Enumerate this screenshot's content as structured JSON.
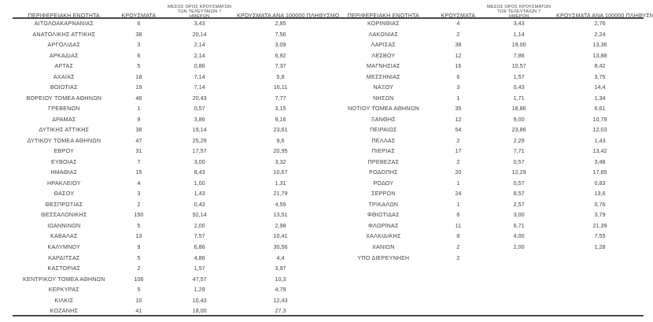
{
  "header": {
    "col_region": "ΠΕΡΙΦΕΡΕΙΑΚΗ ΕΝΟΤΗΤΑ",
    "col_cases": "ΚΡΟΥΣΜΑΤΑ",
    "col_avg7": "ΜΕΣΟΣ ΟΡΟΣ ΚΡΟΥΣΜΑΤΩΝ ΤΩΝ ΤΕΛΕΥΤΑΙΩΝ 7 ΗΜΕΡΩΝ",
    "col_per100k": "ΚΡΟΥΣΜΑΤΑ ΑΝΑ 100000 ΠΛΗΘΥΣΜΟ"
  },
  "colors": {
    "text": "#3f3f3f",
    "rule": "#4a4a4a",
    "background": "#ffffff"
  },
  "tables": [
    {
      "rows": [
        {
          "region": "ΑΙΤΩΛΟΑΚΑΡΝΑΝΙΑΣ",
          "cases": "6",
          "avg7": "3,43",
          "per100k": "2,85"
        },
        {
          "region": "ΑΝΑΤΟΛΙΚΗΣ ΑΤΤΙΚΗΣ",
          "cases": "38",
          "avg7": "20,14",
          "per100k": "7,56"
        },
        {
          "region": "ΑΡΓΟΛΙΔΑΣ",
          "cases": "3",
          "avg7": "2,14",
          "per100k": "3,09"
        },
        {
          "region": "ΑΡΚΑΔΙΑΣ",
          "cases": "6",
          "avg7": "2,14",
          "per100k": "6,92"
        },
        {
          "region": "ΑΡΤΑΣ",
          "cases": "5",
          "avg7": "0,86",
          "per100k": "7,37"
        },
        {
          "region": "ΑΧΑΪΑΣ",
          "cases": "18",
          "avg7": "7,14",
          "per100k": "5,8"
        },
        {
          "region": "ΒΟΙΩΤΙΑΣ",
          "cases": "19",
          "avg7": "7,14",
          "per100k": "16,11"
        },
        {
          "region": "ΒΟΡΕΙΟΥ ΤΟΜΕΑ ΑΘΗΝΩΝ",
          "cases": "46",
          "avg7": "20,43",
          "per100k": "7,77"
        },
        {
          "region": "ΓΡΕΒΕΝΩΝ",
          "cases": "1",
          "avg7": "0,57",
          "per100k": "3,15"
        },
        {
          "region": "ΔΡΑΜΑΣ",
          "cases": "9",
          "avg7": "3,86",
          "per100k": "9,16"
        },
        {
          "region": "ΔΥΤΙΚΗΣ ΑΤΤΙΚΗΣ",
          "cases": "38",
          "avg7": "19,14",
          "per100k": "23,61"
        },
        {
          "region": "ΔΥΤΙΚΟΥ ΤΟΜΕΑ ΑΘΗΝΩΝ",
          "cases": "47",
          "avg7": "25,29",
          "per100k": "9,6"
        },
        {
          "region": "ΕΒΡΟΥ",
          "cases": "31",
          "avg7": "17,57",
          "per100k": "20,95"
        },
        {
          "region": "ΕΥΒΟΙΑΣ",
          "cases": "7",
          "avg7": "3,00",
          "per100k": "3,32"
        },
        {
          "region": "ΗΜΑΘΙΑΣ",
          "cases": "15",
          "avg7": "8,43",
          "per100k": "10,67"
        },
        {
          "region": "ΗΡΑΚΛΕΙΟΥ",
          "cases": "4",
          "avg7": "1,00",
          "per100k": "1,31"
        },
        {
          "region": "ΘΑΣΟΥ",
          "cases": "3",
          "avg7": "1,43",
          "per100k": "21,79"
        },
        {
          "region": "ΘΕΣΠΡΩΤΙΑΣ",
          "cases": "2",
          "avg7": "0,43",
          "per100k": "4,59"
        },
        {
          "region": "ΘΕΣΣΑΛΟΝΙΚΗΣ",
          "cases": "150",
          "avg7": "92,14",
          "per100k": "13,51"
        },
        {
          "region": "ΙΩΑΝΝΙΝΩΝ",
          "cases": "5",
          "avg7": "2,00",
          "per100k": "2,98"
        },
        {
          "region": "ΚΑΒΑΛΑΣ",
          "cases": "13",
          "avg7": "7,57",
          "per100k": "10,41"
        },
        {
          "region": "ΚΑΛΥΜΝΟΥ",
          "cases": "9",
          "avg7": "6,86",
          "per100k": "30,56"
        },
        {
          "region": "ΚΑΡΔΙΤΣΑΣ",
          "cases": "5",
          "avg7": "4,86",
          "per100k": "4,4"
        },
        {
          "region": "ΚΑΣΤΟΡΙΑΣ",
          "cases": "2",
          "avg7": "1,57",
          "per100k": "3,97"
        },
        {
          "region": "ΚΕΝΤΡΙΚΟΥ ΤΟΜΕΑ ΑΘΗΝΩΝ",
          "cases": "106",
          "avg7": "47,57",
          "per100k": "10,3"
        },
        {
          "region": "ΚΕΡΚΥΡΑΣ",
          "cases": "5",
          "avg7": "1,29",
          "per100k": "4,79"
        },
        {
          "region": "ΚΙΛΚΙΣ",
          "cases": "10",
          "avg7": "10,43",
          "per100k": "12,43"
        },
        {
          "region": "ΚΟΖΑΝΗΣ",
          "cases": "41",
          "avg7": "18,00",
          "per100k": "27,3"
        }
      ]
    },
    {
      "rows": [
        {
          "region": "ΚΟΡΙΝΘΙΑΣ",
          "cases": "4",
          "avg7": "3,43",
          "per100k": "2,76"
        },
        {
          "region": "ΛΑΚΩΝΙΑΣ",
          "cases": "2",
          "avg7": "1,14",
          "per100k": "2,24"
        },
        {
          "region": "ΛΑΡΙΣΑΣ",
          "cases": "38",
          "avg7": "19,00",
          "per100k": "13,36"
        },
        {
          "region": "ΛΕΣΒΟΥ",
          "cases": "12",
          "avg7": "7,86",
          "per100k": "13,88"
        },
        {
          "region": "ΜΑΓΝΗΣΙΑΣ",
          "cases": "16",
          "avg7": "10,57",
          "per100k": "8,42"
        },
        {
          "region": "ΜΕΣΣΗΝΙΑΣ",
          "cases": "6",
          "avg7": "1,57",
          "per100k": "3,75"
        },
        {
          "region": "ΝΑΞΟΥ",
          "cases": "3",
          "avg7": "0,43",
          "per100k": "14,4"
        },
        {
          "region": "ΝΗΣΩΝ",
          "cases": "1",
          "avg7": "1,71",
          "per100k": "1,34"
        },
        {
          "region": "ΝΟΤΙΟΥ ΤΟΜΕΑ ΑΘΗΝΩΝ",
          "cases": "35",
          "avg7": "18,86",
          "per100k": "6,61"
        },
        {
          "region": "ΞΑΝΘΗΣ",
          "cases": "12",
          "avg7": "9,00",
          "per100k": "10,79"
        },
        {
          "region": "ΠΕΙΡΑΙΩΣ",
          "cases": "54",
          "avg7": "23,86",
          "per100k": "12,03"
        },
        {
          "region": "ΠΕΛΛΑΣ",
          "cases": "2",
          "avg7": "2,29",
          "per100k": "1,43"
        },
        {
          "region": "ΠΙΕΡΙΑΣ",
          "cases": "17",
          "avg7": "7,71",
          "per100k": "13,42"
        },
        {
          "region": "ΠΡΕΒΕΖΑΣ",
          "cases": "2",
          "avg7": "0,57",
          "per100k": "3,48"
        },
        {
          "region": "ΡΟΔΟΠΗΣ",
          "cases": "20",
          "avg7": "12,29",
          "per100k": "17,85"
        },
        {
          "region": "ΡΟΔΟΥ",
          "cases": "1",
          "avg7": "0,57",
          "per100k": "0,83"
        },
        {
          "region": "ΣΕΡΡΩΝ",
          "cases": "24",
          "avg7": "8,57",
          "per100k": "13,6"
        },
        {
          "region": "ΤΡΙΚΑΛΩΝ",
          "cases": "1",
          "avg7": "2,57",
          "per100k": "0,76"
        },
        {
          "region": "ΦΘΙΩΤΙΔΑΣ",
          "cases": "6",
          "avg7": "3,00",
          "per100k": "3,79"
        },
        {
          "region": "ΦΛΩΡΙΝΑΣ",
          "cases": "11",
          "avg7": "6,71",
          "per100k": "21,39"
        },
        {
          "region": "ΧΑΛΚΙΔΙΚΗΣ",
          "cases": "8",
          "avg7": "4,00",
          "per100k": "7,55"
        },
        {
          "region": "ΧΑΝΙΩΝ",
          "cases": "2",
          "avg7": "2,00",
          "per100k": "1,28"
        },
        {
          "region": "ΥΠΟ ΔΙΕΡΕΥΝΗΣΗ",
          "cases": "2",
          "avg7": "",
          "per100k": ""
        }
      ]
    }
  ]
}
